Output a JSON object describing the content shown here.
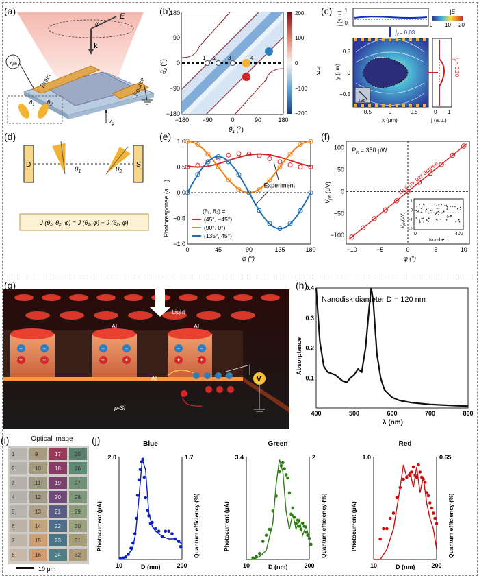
{
  "panel_labels": {
    "a": "(a)",
    "b": "(b)",
    "c": "(c)",
    "d": "(d)",
    "e": "(e)",
    "f": "(f)",
    "g": "(g)",
    "h": "(h)",
    "i": "(i)",
    "j": "(j)"
  },
  "a": {
    "E": "E",
    "phi": "φ",
    "k": "k",
    "drain": "Drain",
    "source": "Source",
    "vph": "V",
    "vph_sub": "ph",
    "vg": "V",
    "vg_sub": "g",
    "t1": "θ",
    "t1s": "1",
    "t2": "θ",
    "t2s": "2"
  },
  "b": {
    "ylabel": "θ",
    "ylabel_sub": "2",
    "yunit": "(°)",
    "xlabel": "θ",
    "xlabel_sub": "1",
    "xunit": "(°)",
    "xticks": [
      "−180",
      "−90",
      "0",
      "90",
      "180"
    ],
    "yticks": [
      "180",
      "90",
      "0",
      "−90",
      "−180"
    ],
    "cbar_label": "PR",
    "cbar_ticks": [
      "200",
      "100",
      "0",
      "−100",
      "−200"
    ],
    "points": [
      "1",
      "2",
      "3",
      "4"
    ]
  },
  "c": {
    "top_ylabel": "j (a.u.)",
    "top_ticks": [
      "1",
      "0"
    ],
    "jx": "j",
    "jx_sub": "x",
    "jx_val": "= 0.03",
    "cbar_label": "|E|",
    "cbar_ticks": [
      "0",
      "10",
      "20"
    ],
    "ylabel": "y (μm)",
    "yticks": [
      "0.5",
      "0",
      "−0.5"
    ],
    "xlabel": "x (μm)",
    "xticks": [
      "−0.5",
      "0",
      "0.5"
    ],
    "angle": "135°",
    "jy": "j",
    "jy_sub": "y",
    "jy_val": "= 0.20",
    "right_xlabel": "j (a.u.)",
    "right_xticks": [
      "0",
      "1"
    ]
  },
  "d": {
    "D": "D",
    "S": "S",
    "t1": "θ",
    "t1s": "1",
    "t2": "θ",
    "t2s": "2",
    "equation": "J (θ₁, θ₂, φ) = J (θ₁, φ) + J (θ₂, φ)"
  },
  "e": {
    "ylabel": "Photoresponse (a.u.)",
    "xlabel": "φ (°)",
    "annotation": "Experiment",
    "legend_title": "(θ₁, θ₂) =",
    "legend": [
      "(45°, −45°)",
      "(90°, 0°)",
      "(135°, 45°)"
    ]
  },
  "f": {
    "power": "P",
    "power_sub": "in",
    "power_val": "= 350 μW",
    "ylabel": "V",
    "ylabel_sub": "ph",
    "yunit": "(μV)",
    "xlabel": "φ (°)",
    "annotation": "10.4 μV per degree",
    "inset_ylabel": "V",
    "inset_ysub": "ph",
    "inset_yunit": "(μV)",
    "inset_xlabel": "Number",
    "inset_xticks": [
      "0",
      "400"
    ],
    "inset_yticks": [
      "1",
      "0",
      "−1",
      "−2"
    ]
  },
  "g": {
    "light": "Light",
    "al1": "Al",
    "al2": "Al",
    "al3": "Al",
    "psi": "p-Si",
    "v": "V"
  },
  "h": {
    "annotation": "Nanodisk diameter D = 120 nm",
    "ylabel": "Absorptance",
    "xlabel": "λ (nm)"
  },
  "i": {
    "title": "Optical image",
    "scale": "10 μm"
  },
  "j": {
    "titles": [
      "Blue",
      "Green",
      "Red"
    ],
    "xlabel": "D (nm)",
    "ylabel_left": "Photocurrent (μA)",
    "ylabel_right": "Quantum efficiency (%)"
  },
  "colors": {
    "red": "#d62728",
    "blue": "#1f6fb8",
    "orange": "#f07f10",
    "jblue": "#0b1fc0",
    "jgreen": "#2f7d16",
    "jred": "#cc0e0e"
  },
  "chart_data": [
    {
      "id": "e",
      "type": "line",
      "x_label": "φ (°)",
      "y_label": "Photoresponse (a.u.)",
      "xlim": [
        0,
        180
      ],
      "ylim": [
        -1,
        1
      ],
      "x": [
        0,
        15,
        30,
        45,
        60,
        75,
        90,
        105,
        120,
        135,
        150,
        165,
        180
      ],
      "series": [
        {
          "name": "(45°, −45°)",
          "values": [
            0.5,
            0.53,
            0.6,
            0.67,
            0.73,
            0.76,
            0.75,
            0.72,
            0.66,
            0.6,
            0.54,
            0.5,
            0.5
          ]
        },
        {
          "name": "(90°, 0°)",
          "values": [
            1.0,
            0.94,
            0.75,
            0.5,
            0.25,
            0.06,
            0.0,
            0.06,
            0.25,
            0.5,
            0.75,
            0.94,
            1.0
          ]
        },
        {
          "name": "(135°, 45°)",
          "values": [
            0.0,
            0.35,
            0.6,
            0.7,
            0.6,
            0.35,
            0.0,
            -0.35,
            -0.6,
            -0.7,
            -0.6,
            -0.35,
            0.0
          ]
        }
      ]
    },
    {
      "id": "f",
      "type": "line",
      "x_label": "φ (°)",
      "y_label": "V_ph (μV)",
      "xlim": [
        -11,
        11
      ],
      "ylim": [
        -120,
        115
      ],
      "x": [
        -10,
        -8,
        -6,
        -4,
        -2,
        0,
        2,
        4,
        6,
        8,
        10
      ],
      "values": [
        -104,
        -83,
        -62,
        -42,
        -21,
        0,
        21,
        42,
        62,
        83,
        104
      ],
      "xticks": [
        -10,
        -5,
        0,
        5,
        10
      ],
      "yticks": [
        -100,
        -50,
        0,
        50,
        100
      ]
    },
    {
      "id": "h",
      "type": "line",
      "x_label": "λ (nm)",
      "y_label": "Absorptance",
      "xlim": [
        400,
        800
      ],
      "ylim": [
        0,
        0.4
      ],
      "x": [
        400,
        410,
        420,
        430,
        440,
        450,
        460,
        470,
        480,
        490,
        500,
        510,
        520,
        530,
        540,
        545,
        550,
        560,
        570,
        580,
        600,
        620,
        650,
        700,
        750,
        800
      ],
      "values": [
        0.4,
        0.22,
        0.14,
        0.12,
        0.115,
        0.11,
        0.1,
        0.09,
        0.085,
        0.1,
        0.11,
        0.13,
        0.12,
        0.2,
        0.34,
        0.4,
        0.36,
        0.18,
        0.1,
        0.06,
        0.035,
        0.025,
        0.018,
        0.012,
        0.009,
        0.006
      ],
      "xticks": [
        400,
        500,
        600,
        700,
        800
      ],
      "yticks": [
        0.1,
        0.2,
        0.3,
        0.4
      ]
    },
    {
      "id": "j-blue",
      "type": "scatter",
      "x_label": "D (nm)",
      "xlim": [
        10,
        200
      ],
      "y_left_max": 2.0,
      "y_right_max": 1.7,
      "x": [
        14,
        22,
        30,
        38,
        46,
        52,
        58,
        62,
        66,
        70,
        74,
        78,
        82,
        86,
        90,
        95,
        100,
        105,
        110,
        120,
        130,
        140,
        150,
        160,
        170,
        180,
        190,
        196
      ],
      "values": [
        0.02,
        0.03,
        0.05,
        0.1,
        0.22,
        0.32,
        0.5,
        0.8,
        1.25,
        1.55,
        1.75,
        1.9,
        1.95,
        1.6,
        1.2,
        0.95,
        0.85,
        0.7,
        0.72,
        0.6,
        0.55,
        0.45,
        0.55,
        0.55,
        0.5,
        0.4,
        0.35,
        0.25
      ],
      "line_x": [
        10,
        30,
        50,
        60,
        70,
        80,
        90,
        100,
        110,
        120,
        140,
        160,
        180,
        200
      ],
      "line": [
        0.0,
        0.05,
        0.2,
        0.5,
        1.2,
        1.95,
        1.75,
        0.9,
        0.65,
        0.55,
        0.45,
        0.4,
        0.4,
        0.3
      ]
    },
    {
      "id": "j-green",
      "type": "scatter",
      "x_label": "D (nm)",
      "xlim": [
        10,
        200
      ],
      "y_left_max": 3.4,
      "y_right_max": 2.0,
      "x": [
        30,
        40,
        50,
        60,
        70,
        80,
        90,
        100,
        110,
        115,
        120,
        125,
        130,
        135,
        140,
        145,
        150,
        155,
        160,
        165,
        170,
        175,
        180,
        185,
        190,
        195,
        200,
        205
      ],
      "values": [
        0.05,
        0.1,
        0.2,
        0.6,
        0.8,
        1.0,
        1.6,
        2.1,
        2.9,
        3.1,
        3.2,
        3.0,
        2.8,
        2.7,
        2.2,
        1.5,
        1.7,
        1.4,
        1.2,
        1.3,
        1.1,
        1.0,
        1.2,
        1.1,
        0.9,
        0.8,
        0.7,
        0.5
      ],
      "line_x": [
        10,
        30,
        50,
        70,
        90,
        100,
        110,
        120,
        130,
        140,
        150,
        160,
        170,
        180,
        190,
        200
      ],
      "line": [
        0.0,
        0.0,
        0.1,
        0.3,
        1.2,
        2.5,
        3.3,
        2.9,
        1.6,
        1.0,
        1.5,
        1.0,
        1.3,
        0.8,
        1.1,
        0.7
      ],
      "yticks": [
        3.4
      ],
      "y_right_ticks": [
        2.0
      ]
    },
    {
      "id": "j-red",
      "type": "scatter",
      "x_label": "D (nm)",
      "xlim": [
        10,
        200
      ],
      "y_left_max": 1.0,
      "y_right_max": 0.65,
      "x": [
        30,
        40,
        50,
        60,
        70,
        80,
        90,
        100,
        110,
        120,
        125,
        130,
        135,
        140,
        145,
        150,
        155,
        160,
        165,
        170,
        175,
        180,
        185,
        190,
        195,
        200
      ],
      "values": [
        0.2,
        0.3,
        0.3,
        0.4,
        0.45,
        0.6,
        0.7,
        0.78,
        0.8,
        0.82,
        0.85,
        0.9,
        0.82,
        0.8,
        0.92,
        0.85,
        0.8,
        0.78,
        0.75,
        0.65,
        0.62,
        0.55,
        0.5,
        0.45,
        0.4,
        0.35
      ],
      "line_x": [
        10,
        30,
        50,
        70,
        90,
        100,
        110,
        120,
        130,
        140,
        150,
        160,
        170,
        180,
        190,
        200
      ],
      "line": [
        0.0,
        0.0,
        0.1,
        0.3,
        0.7,
        0.92,
        0.8,
        0.85,
        0.7,
        0.9,
        0.65,
        0.8,
        0.55,
        0.4,
        0.3,
        0.1
      ]
    }
  ]
}
